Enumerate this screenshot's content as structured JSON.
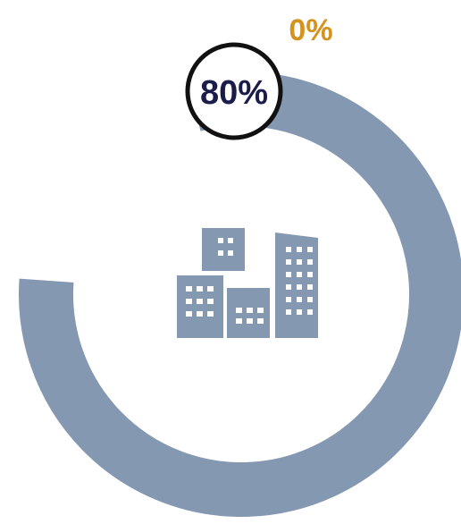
{
  "chart_data": {
    "type": "progress-ring",
    "value_percent": 80,
    "start_percent": 0,
    "labels": {
      "start": "0%",
      "current": "80%"
    },
    "center_icon": "buildings-icon"
  },
  "colors": {
    "ring": "#8598b2",
    "start_label": "#d4921e",
    "current_label": "#1c1c4a",
    "marker_border": "#111111",
    "icon": "#8598b2"
  }
}
